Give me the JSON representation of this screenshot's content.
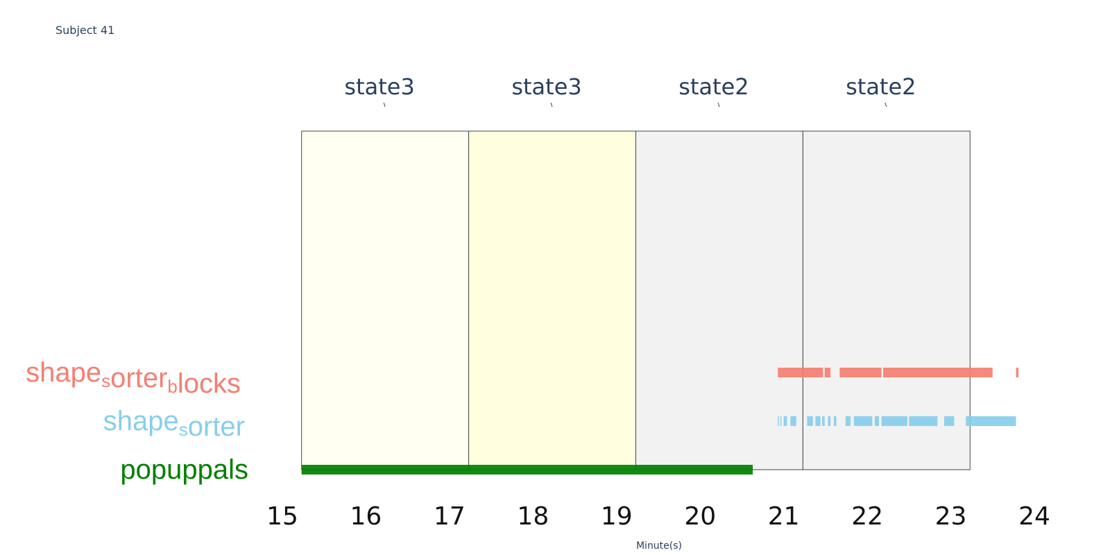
{
  "subject_title": "Subject 41",
  "chart_data": {
    "type": "timeline",
    "title": "Subject 41",
    "xlabel": "Minute(s)",
    "xlim": [
      15,
      24
    ],
    "xticks": [
      15,
      16,
      17,
      18,
      19,
      20,
      21,
      22,
      23,
      24
    ],
    "states": [
      {
        "label": "state3",
        "start": 15.23,
        "end": 17.23,
        "color": "#fffff2"
      },
      {
        "label": "state3",
        "start": 17.23,
        "end": 19.23,
        "color": "#ffffe0"
      },
      {
        "label": "state2",
        "start": 19.23,
        "end": 21.23,
        "color": "#f2f2f2"
      },
      {
        "label": "state2",
        "start": 21.23,
        "end": 23.23,
        "color": "#f2f2f2"
      }
    ],
    "rows": [
      {
        "name": "shape_sorter_blocks",
        "label_parts": [
          {
            "text": "shape",
            "sub": false
          },
          {
            "text": "s",
            "sub": true
          },
          {
            "text": "orter",
            "sub": false
          },
          {
            "text": "b",
            "sub": true
          },
          {
            "text": "locks",
            "sub": false
          }
        ],
        "color": "#f47f72",
        "segments": [
          [
            20.93,
            21.47
          ],
          [
            21.49,
            21.56
          ],
          [
            21.67,
            22.17
          ],
          [
            22.19,
            23.5
          ],
          [
            23.78,
            23.81
          ]
        ]
      },
      {
        "name": "shape_sorter",
        "label_parts": [
          {
            "text": "shape",
            "sub": false
          },
          {
            "text": "s",
            "sub": true
          },
          {
            "text": "orter",
            "sub": false
          }
        ],
        "color": "#87ceeb",
        "segments": [
          [
            20.93,
            20.94
          ],
          [
            20.96,
            20.97
          ],
          [
            21.0,
            21.04
          ],
          [
            21.08,
            21.15
          ],
          [
            21.28,
            21.35
          ],
          [
            21.38,
            21.44
          ],
          [
            21.46,
            21.49
          ],
          [
            21.53,
            21.56
          ],
          [
            21.6,
            21.63
          ],
          [
            21.74,
            21.8
          ],
          [
            21.84,
            22.06
          ],
          [
            22.09,
            22.14
          ],
          [
            22.17,
            22.48
          ],
          [
            22.5,
            22.84
          ],
          [
            22.92,
            23.04
          ],
          [
            23.18,
            23.78
          ]
        ]
      },
      {
        "name": "popuppals",
        "label_parts": [
          {
            "text": "popuppals",
            "sub": false
          }
        ],
        "color": "#008000",
        "segments": [
          [
            15.23,
            20.63
          ]
        ]
      }
    ]
  }
}
